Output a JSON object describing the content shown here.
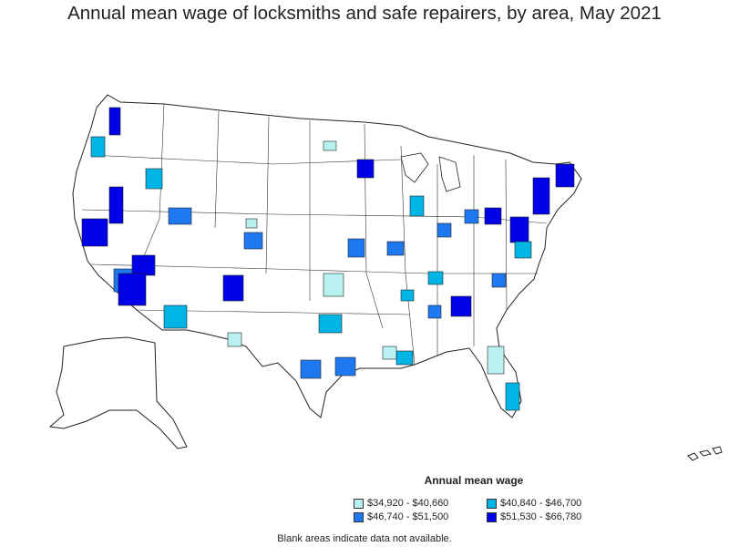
{
  "title": "Annual mean wage of locksmiths and safe repairers, by area, May 2021",
  "legend": {
    "title": "Annual mean wage",
    "items": [
      {
        "label": "$34,920 - $40,660",
        "color": "#b9f0f0"
      },
      {
        "label": "$40,840 - $46,700",
        "color": "#00b4e6"
      },
      {
        "label": "$46,740 - $51,500",
        "color": "#1e78f0"
      },
      {
        "label": "$51,530 - $66,780",
        "color": "#0000e6"
      }
    ]
  },
  "note": "Blank areas indicate data not available."
}
